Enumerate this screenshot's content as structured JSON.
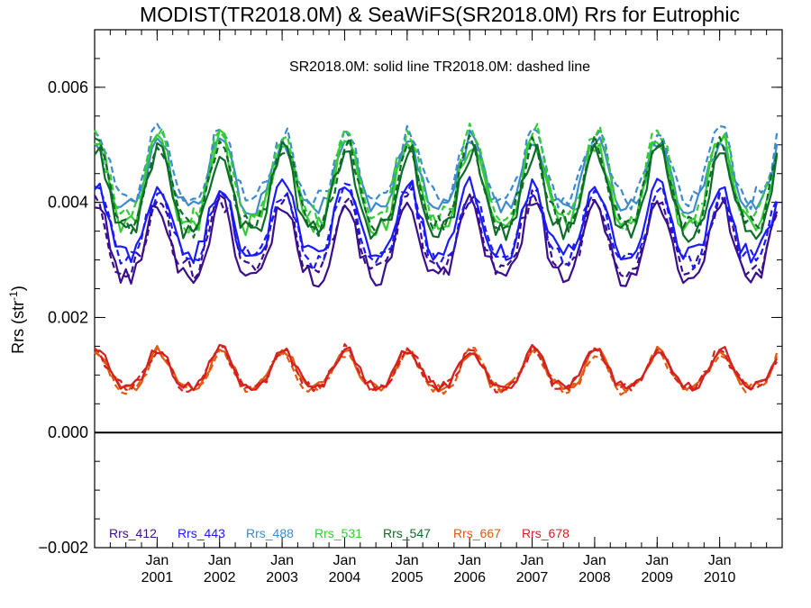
{
  "chart_data": {
    "type": "line",
    "title": "MODIST(TR2018.0M) & SeaWiFS(SR2018.0M)  Rrs for Eutrophic",
    "subtitle": "SR2018.0M: solid line   TR2018.0M: dashed line",
    "ylabel": "Rrs (str",
    "ylabel_sup": "-1",
    "ylabel_close": ")",
    "ylim": [
      -0.002,
      0.007
    ],
    "yticks": [
      -0.002,
      0.0,
      0.002,
      0.004,
      0.006
    ],
    "ytick_labels": [
      "−0.002",
      "0.000",
      "0.002",
      "0.004",
      "0.006"
    ],
    "xlim": [
      2000.0,
      2011.0
    ],
    "xticks": [
      {
        "x": 2001.0,
        "month": "Jan",
        "year": "2001"
      },
      {
        "x": 2002.0,
        "month": "Jan",
        "year": "2002"
      },
      {
        "x": 2003.0,
        "month": "Jan",
        "year": "2003"
      },
      {
        "x": 2004.0,
        "month": "Jan",
        "year": "2004"
      },
      {
        "x": 2005.0,
        "month": "Jan",
        "year": "2005"
      },
      {
        "x": 2006.0,
        "month": "Jan",
        "year": "2006"
      },
      {
        "x": 2007.0,
        "month": "Jan",
        "year": "2007"
      },
      {
        "x": 2008.0,
        "month": "Jan",
        "year": "2008"
      },
      {
        "x": 2009.0,
        "month": "Jan",
        "year": "2009"
      },
      {
        "x": 2010.0,
        "month": "Jan",
        "year": "2010"
      }
    ],
    "zero_line": 0.0,
    "legend_placement": "bottom-left",
    "series_styles": {
      "SR2018.0M": "solid",
      "TR2018.0M": "dashed"
    },
    "time_resolution": "monthly",
    "start_month": "2000-01",
    "seasonal_model": {
      "description": "value(t) = mean + amp * (1+cos(2pi*(t - peak)))/2 + noise; t in fractional year",
      "peak_phase": 0.0
    },
    "series": [
      {
        "name": "Rrs_412",
        "color": "#3b0f8c",
        "mean_low": 0.0027,
        "peak": 0.004,
        "tr_offset": 0.0001
      },
      {
        "name": "Rrs_443",
        "color": "#1a1aff",
        "mean_low": 0.0031,
        "peak": 0.0043,
        "tr_offset": -0.0001
      },
      {
        "name": "Rrs_488",
        "color": "#3d8bcd",
        "mean_low": 0.0039,
        "peak": 0.0051,
        "tr_offset": 0.00015
      },
      {
        "name": "Rrs_531",
        "color": "#33cc33",
        "mean_low": 0.0036,
        "peak": 0.0051,
        "tr_offset": 0.0001
      },
      {
        "name": "Rrs_547",
        "color": "#0f6b2a",
        "mean_low": 0.0035,
        "peak": 0.0049,
        "tr_offset": 0.0001
      },
      {
        "name": "Rrs_667",
        "color": "#e05a10",
        "mean_low": 0.00078,
        "peak": 0.00142,
        "tr_offset": -2e-05
      },
      {
        "name": "Rrs_678",
        "color": "#d42020",
        "mean_low": 0.00081,
        "peak": 0.00145,
        "tr_offset": -2e-05
      }
    ]
  }
}
